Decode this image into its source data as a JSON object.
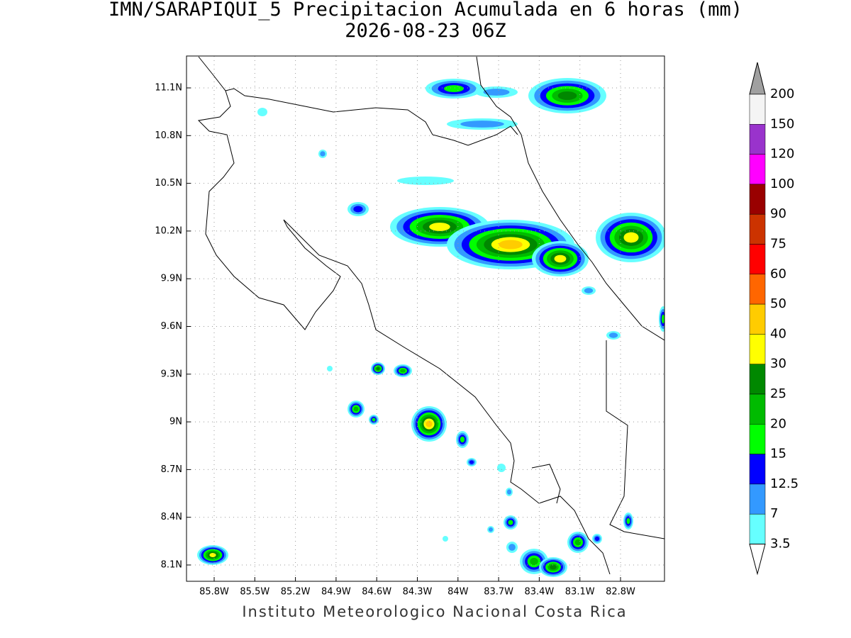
{
  "header": {
    "title": "IMN/SARAPIQUI_5 Precipitacion Acumulada en 6 horas (mm)",
    "subtitle": "2026-08-23 06Z"
  },
  "map": {
    "lat_labels": [
      "11.1N",
      "10.8N",
      "10.5N",
      "10.2N",
      "9.9N",
      "9.6N",
      "9.3N",
      "9N",
      "8.7N",
      "8.4N",
      "8.1N"
    ],
    "lon_labels": [
      "85.8W",
      "85.5W",
      "85.2W",
      "84.9W",
      "84.6W",
      "84.3W",
      "84W",
      "83.7W",
      "83.4W",
      "83.1W",
      "82.8W"
    ]
  },
  "colorbar": {
    "labels": [
      "200",
      "150",
      "120",
      "100",
      "90",
      "75",
      "60",
      "50",
      "40",
      "30",
      "25",
      "20",
      "15",
      "12.5",
      "7",
      "3.5"
    ],
    "colors": [
      "#f4f4f4",
      "#9933cc",
      "#ff00ff",
      "#990000",
      "#cc3300",
      "#ff0000",
      "#ff6600",
      "#ffcc00",
      "#ffff00",
      "#008800",
      "#00bb00",
      "#00ff00",
      "#0000ff",
      "#3399ff",
      "#66ffff"
    ],
    "over_color": "#a0a0a0",
    "under_color": "#ffffff"
  },
  "footer": "Instituto Meteorologico Nacional Costa Rica"
}
